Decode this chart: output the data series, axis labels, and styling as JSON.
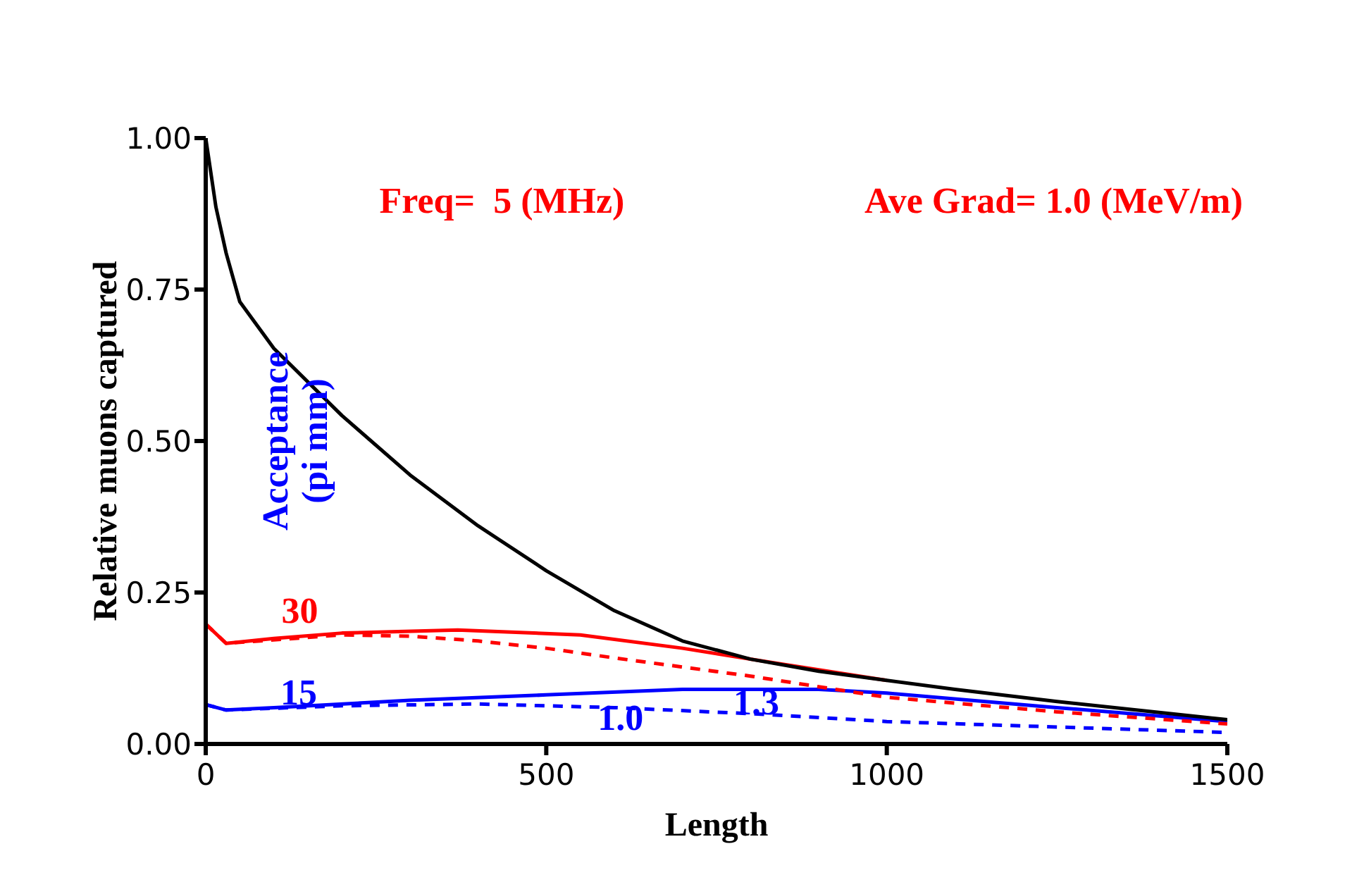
{
  "chart_data": {
    "type": "line",
    "xlabel": "Length",
    "ylabel": "Relative muons captured",
    "legend_title": "Acceptance (pi mm)",
    "annotations": [
      "Freq=  5 (MHz)",
      "Ave Grad= 1.0 (MeV/m)",
      "30",
      "15",
      "1.0",
      "1.3"
    ],
    "xlim": [
      0,
      1500
    ],
    "xticks": [
      0,
      500,
      1000,
      1500
    ],
    "ylim": [
      0,
      1
    ],
    "yticks": [
      {
        "value": 0,
        "label": "0.00"
      },
      {
        "value": 0.25,
        "label": "0.25"
      },
      {
        "value": 0.5,
        "label": "0.50"
      },
      {
        "value": 0.75,
        "label": "0.75"
      },
      {
        "value": 1,
        "label": "1.00"
      }
    ],
    "grid": false,
    "marker": "none",
    "series": [
      {
        "color": "#000000",
        "line_style": "solid",
        "x": [
          0,
          15,
          30,
          50,
          100,
          200,
          300,
          400,
          500,
          600,
          700,
          800,
          900,
          1000,
          1100,
          1250,
          1500
        ],
        "values": [
          1.0,
          0.886,
          0.81,
          0.73,
          0.653,
          0.542,
          0.444,
          0.36,
          0.286,
          0.22,
          0.17,
          0.14,
          0.12,
          0.105,
          0.09,
          0.07,
          0.04
        ]
      },
      {
        "color": "#ff0000",
        "line_style": "solid",
        "x": [
          0,
          30,
          100,
          200,
          370,
          550,
          700,
          850,
          1000
        ],
        "values": [
          0.198,
          0.166,
          0.174,
          0.183,
          0.188,
          0.18,
          0.158,
          0.131,
          0.105
        ]
      },
      {
        "color": "#ff0000",
        "line_style": "dashed",
        "x": [
          0,
          30,
          200,
          300,
          400,
          500,
          600,
          800,
          1000,
          1250,
          1500
        ],
        "values": [
          0.198,
          0.166,
          0.18,
          0.178,
          0.17,
          0.158,
          0.142,
          0.112,
          0.077,
          0.053,
          0.033
        ]
      },
      {
        "color": "#0000ff",
        "line_style": "solid",
        "x": [
          0,
          30,
          100,
          300,
          500,
          700,
          800,
          900,
          1000,
          1250,
          1500
        ],
        "values": [
          0.065,
          0.056,
          0.06,
          0.072,
          0.081,
          0.09,
          0.09,
          0.09,
          0.084,
          0.06,
          0.037
        ]
      },
      {
        "color": "#0000ff",
        "line_style": "dashed",
        "x": [
          0,
          30,
          200,
          400,
          600,
          800,
          1000,
          1250,
          1500
        ],
        "values": [
          0.065,
          0.056,
          0.063,
          0.066,
          0.06,
          0.05,
          0.037,
          0.028,
          0.019
        ]
      }
    ]
  }
}
